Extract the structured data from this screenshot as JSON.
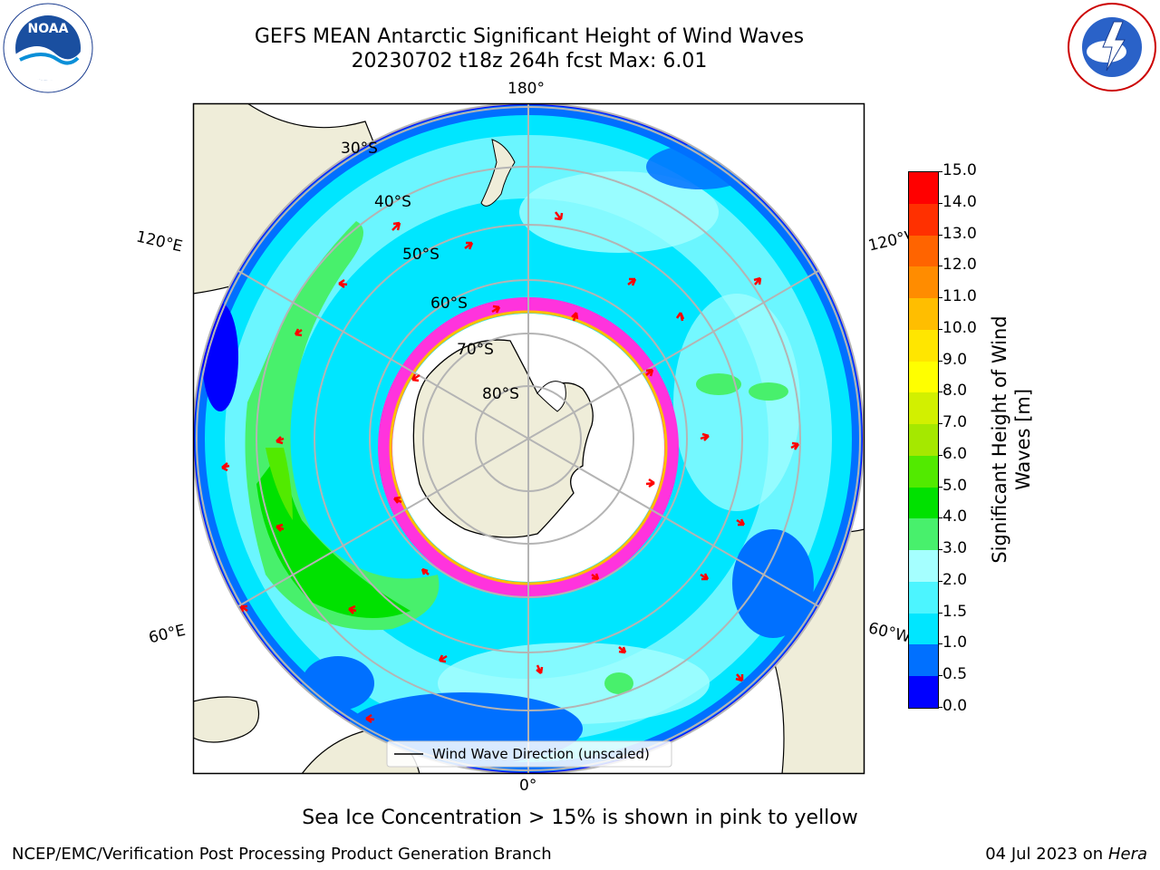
{
  "title": {
    "line1": "GEFS MEAN Antarctic Significant Height of Wind Waves",
    "line2": "20230702 t18z 264h fcst   Max: 6.01"
  },
  "map": {
    "projection": "south-polar-stereographic",
    "lon_labels": [
      "180°",
      "120°E",
      "120°W",
      "60°E",
      "60°W",
      "0°"
    ],
    "lat_labels": [
      "30°S",
      "40°S",
      "50°S",
      "60°S",
      "70°S",
      "80°S"
    ],
    "legend_line_label": "Wind Wave Direction (unscaled)",
    "colors": {
      "land": "#efedd9",
      "ice_free_label": "#ffffff",
      "grid": "#b4b4b4",
      "arrow": "#ff0000",
      "sea_ice": "#ff33dd"
    }
  },
  "colorbar": {
    "label_line1": "Significant Height of Wind",
    "label_line2": "Waves [m]",
    "ticks": [
      "0.0",
      "0.5",
      "1.0",
      "1.5",
      "2.0",
      "3.0",
      "4.0",
      "5.0",
      "6.0",
      "7.0",
      "8.0",
      "9.0",
      "10.0",
      "11.0",
      "12.0",
      "13.0",
      "14.0",
      "15.0"
    ],
    "colors": [
      "#0000ff",
      "#0070ff",
      "#00e6ff",
      "#4cf5ff",
      "#a5ffff",
      "#48f06c",
      "#00e100",
      "#52ea00",
      "#a5e800",
      "#d2f000",
      "#ffff00",
      "#ffe600",
      "#ffbe00",
      "#ff8c00",
      "#ff6400",
      "#ff3000",
      "#ff0000"
    ]
  },
  "logos": {
    "left": "NOAA",
    "right": "NATIONAL WEATHER SERVICE"
  },
  "footnote": "Sea Ice Concentration > 15% is shown in pink to yellow",
  "footer": {
    "left": "NCEP/EMC/Verification Post Processing Product Generation Branch",
    "right_date": "04 Jul 2023 on ",
    "right_host": "Hera"
  }
}
